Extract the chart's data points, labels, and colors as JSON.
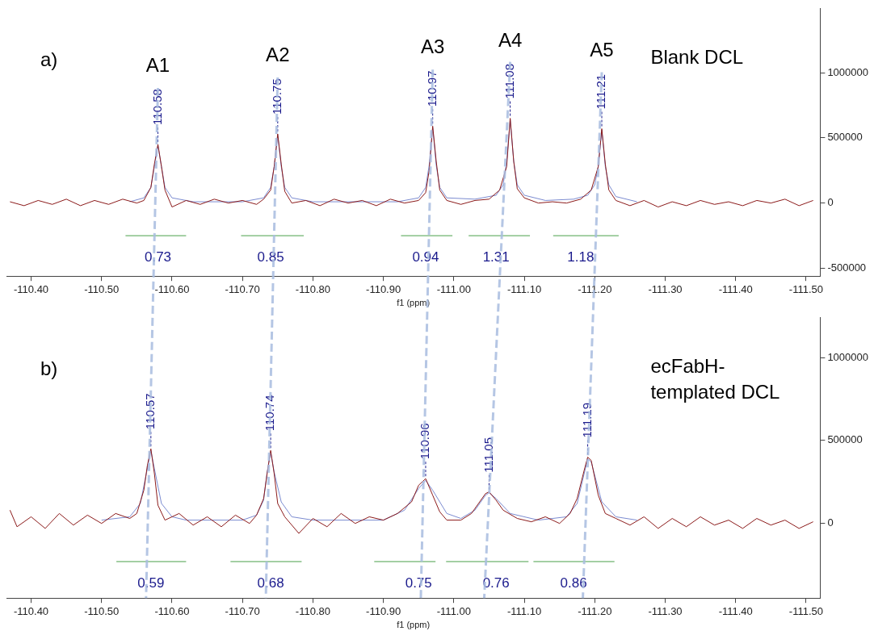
{
  "chart_data": [
    {
      "type": "line",
      "title": "a)",
      "subtitle": "Blank DCL",
      "xlabel": "f1 (ppm)",
      "xlim": [
        -110.365,
        -111.52
      ],
      "xticks": [
        {
          "value": -110.4,
          "label": "-110.40"
        },
        {
          "value": -110.5,
          "label": "-110.50"
        },
        {
          "value": -110.6,
          "label": "-110.60"
        },
        {
          "value": -110.7,
          "label": "-110.70"
        },
        {
          "value": -110.8,
          "label": "-110.80"
        },
        {
          "value": -110.9,
          "label": "-110.90"
        },
        {
          "value": -111.0,
          "label": "-111.00"
        },
        {
          "value": -111.1,
          "label": "-111.10"
        },
        {
          "value": -111.2,
          "label": "-111.20"
        },
        {
          "value": -111.3,
          "label": "-111.30"
        },
        {
          "value": -111.4,
          "label": "-111.40"
        },
        {
          "value": -111.5,
          "label": "-111.50"
        }
      ],
      "ylim": [
        -560000,
        1490000
      ],
      "yticks": [
        -500000,
        0,
        500000,
        1000000
      ],
      "grid": false,
      "marker": "none",
      "series": [
        {
          "type": "line",
          "color": "#8b1a1a",
          "x": [
            -110.37,
            -110.39,
            -110.41,
            -110.43,
            -110.45,
            -110.47,
            -110.49,
            -110.51,
            -110.53,
            -110.55,
            -110.56,
            -110.57,
            -110.575,
            -110.58,
            -110.585,
            -110.59,
            -110.6,
            -110.62,
            -110.64,
            -110.66,
            -110.68,
            -110.7,
            -110.72,
            -110.73,
            -110.74,
            -110.745,
            -110.75,
            -110.755,
            -110.76,
            -110.77,
            -110.79,
            -110.81,
            -110.83,
            -110.85,
            -110.87,
            -110.89,
            -110.91,
            -110.93,
            -110.95,
            -110.96,
            -110.965,
            -110.97,
            -110.975,
            -110.98,
            -110.99,
            -111.01,
            -111.03,
            -111.05,
            -111.065,
            -111.075,
            -111.08,
            -111.085,
            -111.09,
            -111.1,
            -111.12,
            -111.14,
            -111.16,
            -111.18,
            -111.195,
            -111.205,
            -111.21,
            -111.215,
            -111.22,
            -111.23,
            -111.25,
            -111.27,
            -111.29,
            -111.31,
            -111.33,
            -111.35,
            -111.37,
            -111.39,
            -111.41,
            -111.43,
            -111.45,
            -111.47,
            -111.49,
            -111.51
          ],
          "values": [
            10000,
            -20000,
            20000,
            -10000,
            30000,
            -20000,
            20000,
            -10000,
            30000,
            0,
            20000,
            120000,
            300000,
            450000,
            280000,
            100000,
            -30000,
            20000,
            -10000,
            30000,
            0,
            20000,
            -10000,
            30000,
            100000,
            280000,
            530000,
            300000,
            90000,
            0,
            20000,
            -20000,
            30000,
            0,
            20000,
            -20000,
            30000,
            0,
            20000,
            80000,
            250000,
            590000,
            320000,
            100000,
            20000,
            -10000,
            20000,
            30000,
            100000,
            280000,
            650000,
            320000,
            110000,
            40000,
            0,
            10000,
            0,
            30000,
            100000,
            280000,
            570000,
            300000,
            100000,
            20000,
            -20000,
            20000,
            -30000,
            10000,
            -20000,
            20000,
            -10000,
            10000,
            -20000,
            20000,
            0,
            30000,
            -20000,
            20000
          ]
        },
        {
          "type": "line",
          "color": "#7b8bd0",
          "x": [
            -110.54,
            -110.56,
            -110.57,
            -110.575,
            -110.58,
            -110.585,
            -110.59,
            -110.6,
            -110.63,
            -110.7,
            -110.73,
            -110.74,
            -110.745,
            -110.75,
            -110.755,
            -110.76,
            -110.77,
            -110.8,
            -110.92,
            -110.95,
            -110.96,
            -110.965,
            -110.97,
            -110.975,
            -110.98,
            -110.99,
            -111.03,
            -111.06,
            -111.07,
            -111.075,
            -111.08,
            -111.085,
            -111.09,
            -111.1,
            -111.13,
            -111.17,
            -111.19,
            -111.2,
            -111.205,
            -111.21,
            -111.215,
            -111.22,
            -111.23,
            -111.26
          ],
          "values": [
            10000,
            40000,
            120000,
            280000,
            440000,
            280000,
            120000,
            40000,
            10000,
            10000,
            40000,
            120000,
            280000,
            520000,
            280000,
            120000,
            40000,
            10000,
            10000,
            40000,
            120000,
            290000,
            580000,
            290000,
            120000,
            40000,
            30000,
            60000,
            140000,
            320000,
            640000,
            320000,
            140000,
            60000,
            20000,
            30000,
            60000,
            140000,
            280000,
            560000,
            280000,
            140000,
            50000,
            10000
          ]
        },
        {
          "type": "line",
          "color": "#4aa04a",
          "x": [
            -110.534,
            -110.62
          ],
          "values": [
            -250000,
            -250000
          ]
        },
        {
          "type": "line",
          "color": "#4aa04a",
          "x": [
            -110.698,
            -110.787
          ],
          "values": [
            -250000,
            -250000
          ]
        },
        {
          "type": "line",
          "color": "#4aa04a",
          "x": [
            -110.925,
            -110.998
          ],
          "values": [
            -250000,
            -250000
          ]
        },
        {
          "type": "line",
          "color": "#4aa04a",
          "x": [
            -111.021,
            -111.108
          ],
          "values": [
            -250000,
            -250000
          ]
        },
        {
          "type": "line",
          "color": "#4aa04a",
          "x": [
            -111.141,
            -111.234
          ],
          "values": [
            -250000,
            -250000
          ]
        }
      ],
      "annotations": [
        "A1",
        "A2",
        "A3",
        "A4",
        "A5",
        {
          "text": "110.58",
          "x": -110.58,
          "y": 450000
        },
        {
          "text": "110.75",
          "x": -110.75,
          "y": 530000
        },
        {
          "text": "110.97",
          "x": -110.97,
          "y": 590000
        },
        {
          "text": "111.08",
          "x": -111.08,
          "y": 650000
        },
        {
          "text": "111.21",
          "x": -111.21,
          "y": 570000
        },
        {
          "text": "0.73",
          "x": -110.58,
          "y": -250000
        },
        {
          "text": "0.85",
          "x": -110.74,
          "y": -250000
        },
        {
          "text": "0.94",
          "x": -110.96,
          "y": -250000
        },
        {
          "text": "1.31",
          "x": -111.06,
          "y": -250000
        },
        {
          "text": "1.18",
          "x": -111.18,
          "y": -250000
        }
      ]
    },
    {
      "type": "line",
      "title": "b)",
      "subtitle": "ecFabH-templated DCL",
      "xlabel": "f1 (ppm)",
      "xlim": [
        -110.365,
        -111.52
      ],
      "xticks": [
        {
          "value": -110.4,
          "label": "-110.40"
        },
        {
          "value": -110.5,
          "label": "-110.50"
        },
        {
          "value": -110.6,
          "label": "-110.60"
        },
        {
          "value": -110.7,
          "label": "-110.70"
        },
        {
          "value": -110.8,
          "label": "-110.80"
        },
        {
          "value": -110.9,
          "label": "-110.90"
        },
        {
          "value": -111.0,
          "label": "-111.00"
        },
        {
          "value": -111.1,
          "label": "-111.10"
        },
        {
          "value": -111.2,
          "label": "-111.20"
        },
        {
          "value": -111.3,
          "label": "-111.30"
        },
        {
          "value": -111.4,
          "label": "-111.40"
        },
        {
          "value": -111.5,
          "label": "-111.50"
        }
      ],
      "ylim": [
        -450000,
        1240000
      ],
      "yticks": [
        0,
        500000,
        1000000
      ],
      "grid": false,
      "marker": "none",
      "series": [
        {
          "type": "line",
          "color": "#8b1a1a",
          "x": [
            -110.37,
            -110.38,
            -110.4,
            -110.42,
            -110.44,
            -110.46,
            -110.48,
            -110.5,
            -110.52,
            -110.54,
            -110.55,
            -110.56,
            -110.565,
            -110.57,
            -110.575,
            -110.58,
            -110.59,
            -110.61,
            -110.63,
            -110.65,
            -110.67,
            -110.69,
            -110.71,
            -110.72,
            -110.73,
            -110.735,
            -110.74,
            -110.745,
            -110.75,
            -110.76,
            -110.78,
            -110.8,
            -110.82,
            -110.84,
            -110.86,
            -110.88,
            -110.9,
            -110.92,
            -110.94,
            -110.95,
            -110.96,
            -110.97,
            -110.98,
            -110.99,
            -111.01,
            -111.025,
            -111.035,
            -111.045,
            -111.05,
            -111.06,
            -111.07,
            -111.09,
            -111.11,
            -111.13,
            -111.15,
            -111.165,
            -111.175,
            -111.185,
            -111.19,
            -111.195,
            -111.205,
            -111.215,
            -111.23,
            -111.25,
            -111.27,
            -111.29,
            -111.31,
            -111.33,
            -111.35,
            -111.37,
            -111.39,
            -111.41,
            -111.43,
            -111.45,
            -111.47,
            -111.49,
            -111.51
          ],
          "values": [
            80000,
            -20000,
            40000,
            -30000,
            60000,
            -10000,
            50000,
            0,
            60000,
            30000,
            60000,
            200000,
            350000,
            450000,
            300000,
            110000,
            20000,
            60000,
            -10000,
            40000,
            -20000,
            50000,
            0,
            50000,
            150000,
            300000,
            440000,
            300000,
            120000,
            40000,
            -60000,
            30000,
            -20000,
            60000,
            0,
            40000,
            20000,
            60000,
            130000,
            230000,
            270000,
            170000,
            70000,
            20000,
            20000,
            60000,
            120000,
            180000,
            190000,
            140000,
            80000,
            30000,
            10000,
            40000,
            0,
            60000,
            150000,
            320000,
            400000,
            380000,
            170000,
            60000,
            30000,
            -10000,
            40000,
            -30000,
            30000,
            -20000,
            40000,
            -10000,
            20000,
            -30000,
            30000,
            -10000,
            20000,
            -30000,
            10000
          ]
        },
        {
          "type": "line",
          "color": "#7b8bd0",
          "x": [
            -110.5,
            -110.54,
            -110.555,
            -110.565,
            -110.57,
            -110.575,
            -110.585,
            -110.6,
            -110.62,
            -110.7,
            -110.72,
            -110.73,
            -110.735,
            -110.74,
            -110.745,
            -110.755,
            -110.77,
            -110.8,
            -110.9,
            -110.93,
            -110.95,
            -110.96,
            -110.97,
            -110.99,
            -111.01,
            -111.03,
            -111.045,
            -111.05,
            -111.06,
            -111.08,
            -111.12,
            -111.16,
            -111.175,
            -111.185,
            -111.19,
            -111.195,
            -111.21,
            -111.23,
            -111.26
          ],
          "values": [
            20000,
            40000,
            120000,
            330000,
            440000,
            330000,
            120000,
            40000,
            20000,
            20000,
            50000,
            140000,
            310000,
            430000,
            310000,
            130000,
            40000,
            20000,
            20000,
            80000,
            210000,
            260000,
            200000,
            60000,
            30000,
            80000,
            170000,
            185000,
            150000,
            60000,
            20000,
            40000,
            120000,
            300000,
            390000,
            370000,
            130000,
            40000,
            20000
          ]
        },
        {
          "type": "line",
          "color": "#4aa04a",
          "x": [
            -110.521,
            -110.62
          ],
          "values": [
            -230000,
            -230000
          ]
        },
        {
          "type": "line",
          "color": "#4aa04a",
          "x": [
            -110.683,
            -110.784
          ],
          "values": [
            -230000,
            -230000
          ]
        },
        {
          "type": "line",
          "color": "#4aa04a",
          "x": [
            -110.887,
            -110.974
          ],
          "values": [
            -230000,
            -230000
          ]
        },
        {
          "type": "line",
          "color": "#4aa04a",
          "x": [
            -110.989,
            -111.106
          ],
          "values": [
            -230000,
            -230000
          ]
        },
        {
          "type": "line",
          "color": "#4aa04a",
          "x": [
            -111.113,
            -111.228
          ],
          "values": [
            -230000,
            -230000
          ]
        }
      ],
      "annotations": [
        {
          "text": "110.57",
          "x": -110.57,
          "y": 450000
        },
        {
          "text": "110.74",
          "x": -110.74,
          "y": 440000
        },
        {
          "text": "110.96",
          "x": -110.96,
          "y": 270000
        },
        {
          "text": "111.05",
          "x": -111.05,
          "y": 190000
        },
        {
          "text": "111.19",
          "x": -111.19,
          "y": 400000
        },
        {
          "text": "0.59",
          "x": -110.57,
          "y": -230000
        },
        {
          "text": "0.68",
          "x": -110.74,
          "y": -230000
        },
        {
          "text": "0.75",
          "x": -110.95,
          "y": -230000
        },
        {
          "text": "0.76",
          "x": -111.06,
          "y": -230000
        },
        {
          "text": "0.86",
          "x": -111.17,
          "y": -230000
        }
      ]
    }
  ]
}
